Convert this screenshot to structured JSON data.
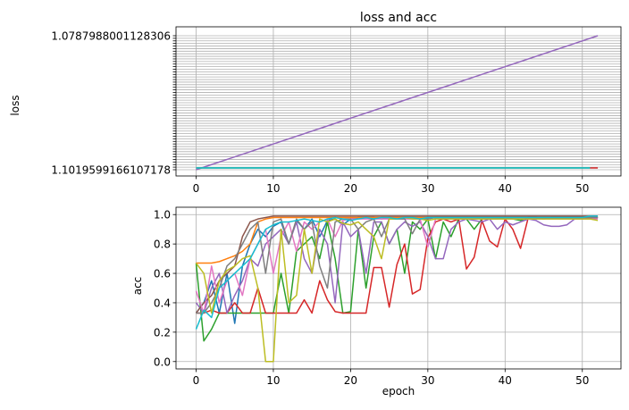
{
  "chart_data": [
    {
      "type": "line",
      "title": "loss and acc",
      "xlabel": "",
      "ylabel": "loss",
      "grid": true,
      "y_axis": "categorical",
      "xlim": [
        -2.6,
        55
      ],
      "x_ticks": [
        0,
        10,
        20,
        30,
        40,
        50
      ],
      "y_tick_labels_readable": [
        "1.1019599166107178",
        "1.0787988001128306"
      ],
      "series": [
        {
          "color": "#9467bd",
          "x": [
            0,
            52
          ],
          "y": [
            "1.1019599166107178",
            "1.0787988001128306"
          ]
        },
        {
          "color": "#2ca02c",
          "x": [
            0,
            51
          ],
          "y": [
            "1.1019599166107178",
            "1.1019599166107178"
          ]
        },
        {
          "color": "#17becf",
          "x": [
            0,
            51
          ],
          "y": [
            "1.1019599166107178",
            "1.1019599166107178"
          ]
        },
        {
          "color": "#d62728",
          "x": [
            51,
            52
          ],
          "y": [
            "1.1019599166107178",
            "1.1019599166107178"
          ]
        }
      ]
    },
    {
      "type": "line",
      "title": "",
      "xlabel": "epoch",
      "ylabel": "acc",
      "grid": true,
      "xlim": [
        -2.6,
        55
      ],
      "ylim": [
        -0.05,
        1.05
      ],
      "x_ticks": [
        0,
        10,
        20,
        30,
        40,
        50
      ],
      "y_ticks": [
        0.0,
        0.2,
        0.4,
        0.6,
        0.8,
        1.0
      ],
      "series": [
        {
          "color": "#1f77b4",
          "values": [
            0.33,
            0.4,
            0.55,
            0.33,
            0.6,
            0.26,
            0.65,
            0.8,
            0.9,
            0.85,
            0.92,
            0.95,
            0.8,
            0.96,
            0.9,
            0.97,
            0.85,
            0.96,
            0.97,
            0.93,
            0.97,
            0.98,
            0.98,
            0.98,
            0.97,
            0.98,
            0.98,
            0.98,
            0.98,
            0.98,
            0.98,
            0.98,
            0.98,
            0.98,
            0.98,
            0.98,
            0.98,
            0.98,
            0.98,
            0.98,
            0.98,
            0.98,
            0.98,
            0.98,
            0.98,
            0.98,
            0.98,
            0.98,
            0.98,
            0.98,
            0.98,
            0.98,
            0.98
          ]
        },
        {
          "color": "#ff7f0e",
          "values": [
            0.67,
            0.67,
            0.67,
            0.68,
            0.7,
            0.72,
            0.75,
            0.8,
            0.95,
            0.97,
            0.98,
            0.98,
            0.98,
            0.98,
            0.98,
            0.98,
            0.98,
            0.98,
            0.98,
            0.98,
            0.98,
            0.98,
            0.98,
            0.98,
            0.98,
            0.98,
            0.98,
            0.98,
            0.98,
            0.98,
            0.98,
            0.98,
            0.98,
            0.98,
            0.98,
            0.98,
            0.98,
            0.98,
            0.98,
            0.98,
            0.98,
            0.98,
            0.98,
            0.98,
            0.98,
            0.98,
            0.98,
            0.98,
            0.98,
            0.98,
            0.98,
            0.98,
            0.98
          ]
        },
        {
          "color": "#2ca02c",
          "values": [
            0.67,
            0.14,
            0.22,
            0.33,
            0.33,
            0.33,
            0.33,
            0.33,
            0.33,
            0.33,
            0.33,
            0.6,
            0.33,
            0.75,
            0.8,
            0.85,
            0.7,
            0.95,
            0.7,
            0.33,
            0.34,
            0.9,
            0.5,
            0.85,
            0.95,
            0.8,
            0.9,
            0.6,
            0.95,
            0.9,
            0.97,
            0.7,
            0.95,
            0.85,
            0.97,
            0.97,
            0.9,
            0.97,
            0.97,
            0.97,
            0.98,
            0.97,
            0.96,
            0.98,
            0.98,
            0.97,
            0.98,
            0.98,
            0.98,
            0.98,
            0.98,
            0.98,
            0.98
          ]
        },
        {
          "color": "#d62728",
          "values": [
            0.33,
            0.33,
            0.35,
            0.33,
            0.33,
            0.4,
            0.33,
            0.33,
            0.5,
            0.33,
            0.33,
            0.33,
            0.33,
            0.33,
            0.42,
            0.33,
            0.55,
            0.42,
            0.34,
            0.33,
            0.33,
            0.33,
            0.33,
            0.64,
            0.64,
            0.37,
            0.66,
            0.8,
            0.46,
            0.49,
            0.84,
            0.95,
            0.97,
            0.95,
            0.97,
            0.63,
            0.71,
            0.96,
            0.82,
            0.78,
            0.97,
            0.9,
            0.77,
            0.98,
            0.98,
            0.97,
            0.98,
            0.98,
            0.98,
            0.98,
            0.98,
            0.98,
            0.98
          ]
        },
        {
          "color": "#9467bd",
          "values": [
            0.4,
            0.33,
            0.5,
            0.6,
            0.33,
            0.45,
            0.55,
            0.7,
            0.65,
            0.8,
            0.85,
            0.9,
            0.8,
            0.95,
            0.7,
            0.6,
            0.9,
            0.8,
            0.4,
            0.95,
            0.85,
            0.9,
            0.6,
            0.95,
            0.95,
            0.8,
            0.9,
            0.95,
            0.92,
            0.95,
            0.85,
            0.7,
            0.7,
            0.9,
            0.95,
            0.97,
            0.96,
            0.95,
            0.97,
            0.9,
            0.95,
            0.93,
            0.95,
            0.97,
            0.96,
            0.93,
            0.92,
            0.92,
            0.93,
            0.97,
            0.97,
            0.98,
            0.98
          ]
        },
        {
          "color": "#8c564b",
          "values": [
            0.33,
            0.4,
            0.45,
            0.55,
            0.6,
            0.65,
            0.85,
            0.95,
            0.97,
            0.98,
            0.99,
            0.99,
            0.99,
            0.99,
            0.99,
            0.99,
            0.99,
            0.99,
            0.99,
            0.99,
            0.99,
            0.99,
            0.99,
            0.99,
            0.99,
            0.99,
            0.99,
            0.99,
            0.99,
            0.99,
            0.99,
            0.99,
            0.99,
            0.99,
            0.99,
            0.99,
            0.99,
            0.99,
            0.99,
            0.99,
            0.99,
            0.99,
            0.99,
            0.99,
            0.99,
            0.99,
            0.99,
            0.99,
            0.99,
            0.99,
            0.99,
            0.99,
            0.99
          ]
        },
        {
          "color": "#e377c2",
          "values": [
            0.48,
            0.33,
            0.65,
            0.4,
            0.55,
            0.6,
            0.45,
            0.7,
            0.8,
            0.9,
            0.6,
            0.85,
            0.95,
            0.75,
            0.95,
            0.9,
            0.95,
            0.97,
            0.85,
            0.96,
            0.97,
            0.97,
            0.97,
            0.97,
            0.97,
            0.97,
            0.97,
            0.97,
            0.97,
            0.97,
            0.78,
            0.97,
            0.97,
            0.97,
            0.97,
            0.97,
            0.97,
            0.97,
            0.97,
            0.97,
            0.97,
            0.97,
            0.97,
            0.97,
            0.97,
            0.97,
            0.97,
            0.97,
            0.97,
            0.97,
            0.97,
            0.97,
            0.97
          ]
        },
        {
          "color": "#7f7f7f",
          "values": [
            0.33,
            0.33,
            0.4,
            0.5,
            0.65,
            0.7,
            0.8,
            0.9,
            0.95,
            0.6,
            0.95,
            0.97,
            0.8,
            0.97,
            0.9,
            0.95,
            0.65,
            0.5,
            0.95,
            0.97,
            0.97,
            0.9,
            0.95,
            0.97,
            0.85,
            0.97,
            0.97,
            0.97,
            0.87,
            0.97,
            0.97,
            0.98,
            0.98,
            0.98,
            0.98,
            0.98,
            0.98,
            0.98,
            0.98,
            0.98,
            0.98,
            0.98,
            0.98,
            0.98,
            0.98,
            0.98,
            0.98,
            0.98,
            0.98,
            0.98,
            0.98,
            0.98,
            0.98
          ]
        },
        {
          "color": "#bcbd22",
          "values": [
            0.67,
            0.6,
            0.33,
            0.55,
            0.62,
            0.65,
            0.7,
            0.72,
            0.5,
            0.0,
            0.0,
            0.9,
            0.4,
            0.45,
            0.9,
            0.6,
            0.97,
            0.95,
            0.97,
            0.94,
            0.93,
            0.95,
            0.9,
            0.85,
            0.7,
            0.97,
            0.97,
            0.98,
            0.97,
            0.97,
            0.96,
            0.97,
            0.97,
            0.97,
            0.97,
            0.97,
            0.97,
            0.97,
            0.97,
            0.97,
            0.97,
            0.97,
            0.97,
            0.97,
            0.97,
            0.97,
            0.97,
            0.97,
            0.97,
            0.97,
            0.97,
            0.97,
            0.96
          ]
        },
        {
          "color": "#17becf",
          "values": [
            0.22,
            0.35,
            0.3,
            0.5,
            0.55,
            0.6,
            0.65,
            0.7,
            0.8,
            0.9,
            0.93,
            0.95,
            0.95,
            0.96,
            0.97,
            0.96,
            0.95,
            0.97,
            0.98,
            0.97,
            0.96,
            0.97,
            0.98,
            0.97,
            0.98,
            0.98,
            0.97,
            0.98,
            0.98,
            0.97,
            0.98,
            0.98,
            0.98,
            0.98,
            0.98,
            0.98,
            0.98,
            0.98,
            0.98,
            0.98,
            0.98,
            0.98,
            0.98,
            0.98,
            0.98,
            0.98,
            0.98,
            0.98,
            0.98,
            0.98,
            0.98,
            0.99,
            0.99
          ]
        }
      ]
    }
  ]
}
